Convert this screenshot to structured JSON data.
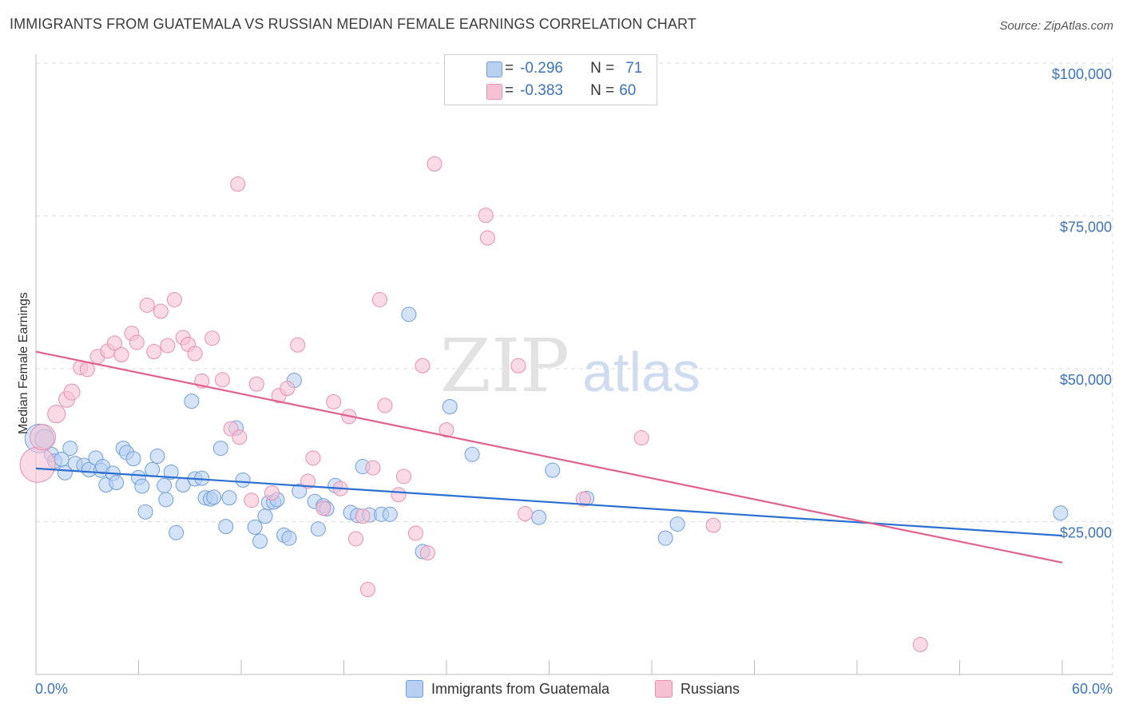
{
  "header": {
    "title": "IMMIGRANTS FROM GUATEMALA VS RUSSIAN MEDIAN FEMALE EARNINGS CORRELATION CHART",
    "source": "Source: ZipAtlas.com"
  },
  "watermark": {
    "zip": "ZIP",
    "atlas": "atlas"
  },
  "legend": {
    "rows": [
      {
        "r_label": "R =",
        "r_value": "-0.296",
        "n_label": "N =",
        "n_value": "71"
      },
      {
        "r_label": "R =",
        "r_value": "-0.383",
        "n_label": "N =",
        "n_value": "60"
      }
    ]
  },
  "bottom_legend": {
    "series1": "Immigrants from Guatemala",
    "series2": "Russians"
  },
  "colors": {
    "blue_fill": "#b7d0f2",
    "blue_stroke": "#6f9fdd",
    "blue_line": "#2a6fd1",
    "pink_fill": "#f6c2d3",
    "pink_stroke": "#e98fae",
    "pink_line": "#e0608f",
    "tick_text": "#3a73c4",
    "grid": "#dedede"
  },
  "chart_data": {
    "type": "scatter",
    "title": "IMMIGRANTS FROM GUATEMALA VS RUSSIAN MEDIAN FEMALE EARNINGS CORRELATION CHART",
    "xlabel": "",
    "ylabel": "Median Female Earnings",
    "xlim": [
      0,
      60
    ],
    "ylim": [
      0,
      104000
    ],
    "x_tick_labels": [
      "0.0%",
      "60.0%"
    ],
    "y_ticks": [
      25000,
      50000,
      75000,
      100000
    ],
    "y_tick_labels": [
      "$25,000",
      "$50,000",
      "$75,000",
      "$100,000"
    ],
    "grid": true,
    "legend_position": "top-center",
    "series": [
      {
        "name": "Immigrants from Guatemala",
        "color": "#6f9fdd",
        "trend": {
          "x": [
            0,
            60
          ],
          "y": [
            33700,
            22700
          ]
        },
        "points": [
          [
            0.2,
            38600,
            18
          ],
          [
            0.5,
            38500,
            12
          ],
          [
            0.9,
            36000,
            9
          ],
          [
            1.1,
            34900,
            9
          ],
          [
            2.0,
            37000,
            9
          ],
          [
            1.5,
            35200,
            9
          ],
          [
            1.7,
            33000,
            9
          ],
          [
            2.3,
            34500,
            9
          ],
          [
            2.8,
            34200,
            9
          ],
          [
            3.1,
            33500,
            9
          ],
          [
            3.5,
            35400,
            9
          ],
          [
            3.8,
            33400,
            9
          ],
          [
            3.9,
            34000,
            9
          ],
          [
            4.1,
            31000,
            9
          ],
          [
            4.5,
            32900,
            9
          ],
          [
            4.7,
            31400,
            9
          ],
          [
            5.1,
            37000,
            9
          ],
          [
            5.3,
            36300,
            9
          ],
          [
            5.7,
            35300,
            9
          ],
          [
            6.0,
            32200,
            9
          ],
          [
            6.2,
            30800,
            9
          ],
          [
            6.4,
            26600,
            9
          ],
          [
            6.8,
            33500,
            9
          ],
          [
            7.1,
            35700,
            9
          ],
          [
            7.5,
            30900,
            9
          ],
          [
            7.6,
            28600,
            9
          ],
          [
            7.9,
            33100,
            9
          ],
          [
            8.2,
            23200,
            9
          ],
          [
            8.6,
            31000,
            9
          ],
          [
            9.1,
            44700,
            9
          ],
          [
            9.3,
            32000,
            9
          ],
          [
            9.7,
            32100,
            9
          ],
          [
            9.9,
            28900,
            9
          ],
          [
            10.2,
            28700,
            9
          ],
          [
            10.4,
            29000,
            9
          ],
          [
            10.8,
            37000,
            9
          ],
          [
            11.1,
            24200,
            9
          ],
          [
            11.3,
            28900,
            9
          ],
          [
            11.7,
            40300,
            9
          ],
          [
            12.1,
            31800,
            9
          ],
          [
            12.8,
            24100,
            9
          ],
          [
            13.1,
            21800,
            9
          ],
          [
            13.4,
            25900,
            9
          ],
          [
            13.6,
            28100,
            9
          ],
          [
            13.9,
            28200,
            9
          ],
          [
            14.1,
            28600,
            9
          ],
          [
            14.5,
            22800,
            9
          ],
          [
            14.8,
            22300,
            9
          ],
          [
            15.1,
            48100,
            9
          ],
          [
            15.4,
            30000,
            9
          ],
          [
            16.3,
            28300,
            9
          ],
          [
            16.5,
            23800,
            9
          ],
          [
            16.8,
            27600,
            9
          ],
          [
            17.0,
            27100,
            9
          ],
          [
            17.5,
            30900,
            9
          ],
          [
            18.4,
            26500,
            9
          ],
          [
            18.8,
            26000,
            9
          ],
          [
            19.1,
            34000,
            9
          ],
          [
            19.5,
            26100,
            9
          ],
          [
            20.2,
            26200,
            9
          ],
          [
            20.7,
            26200,
            9
          ],
          [
            21.8,
            58900,
            9
          ],
          [
            22.6,
            20100,
            9
          ],
          [
            24.2,
            43800,
            9
          ],
          [
            25.5,
            36000,
            9
          ],
          [
            29.4,
            25700,
            9
          ],
          [
            30.2,
            33400,
            9
          ],
          [
            32.2,
            28800,
            9
          ],
          [
            36.8,
            22300,
            9
          ],
          [
            37.5,
            24600,
            9
          ],
          [
            59.9,
            26400,
            9
          ]
        ]
      },
      {
        "name": "Russians",
        "color": "#e98fae",
        "trend": {
          "x": [
            0,
            60
          ],
          "y": [
            52800,
            18300
          ]
        },
        "points": [
          [
            0.1,
            34300,
            22
          ],
          [
            0.4,
            38800,
            16
          ],
          [
            1.2,
            42600,
            11
          ],
          [
            1.8,
            45000,
            10
          ],
          [
            2.1,
            46200,
            10
          ],
          [
            2.6,
            50200,
            9
          ],
          [
            3.0,
            49900,
            9
          ],
          [
            3.6,
            52000,
            9
          ],
          [
            4.2,
            52900,
            9
          ],
          [
            4.6,
            54200,
            9
          ],
          [
            5.0,
            52300,
            9
          ],
          [
            5.6,
            55800,
            9
          ],
          [
            5.9,
            54300,
            9
          ],
          [
            6.5,
            60400,
            9
          ],
          [
            6.9,
            52800,
            9
          ],
          [
            7.3,
            59400,
            9
          ],
          [
            7.7,
            53800,
            9
          ],
          [
            8.1,
            61300,
            9
          ],
          [
            8.6,
            55100,
            9
          ],
          [
            8.9,
            54000,
            9
          ],
          [
            9.3,
            52500,
            9
          ],
          [
            9.7,
            48000,
            9
          ],
          [
            10.3,
            55000,
            9
          ],
          [
            10.9,
            48200,
            9
          ],
          [
            11.4,
            40200,
            9
          ],
          [
            11.9,
            38800,
            9
          ],
          [
            11.8,
            80200,
            9
          ],
          [
            12.6,
            28500,
            9
          ],
          [
            12.9,
            47500,
            9
          ],
          [
            13.8,
            29700,
            9
          ],
          [
            14.2,
            45600,
            9
          ],
          [
            14.7,
            46800,
            9
          ],
          [
            15.3,
            53900,
            9
          ],
          [
            15.9,
            31600,
            9
          ],
          [
            16.2,
            35400,
            9
          ],
          [
            16.8,
            27200,
            9
          ],
          [
            17.4,
            44600,
            9
          ],
          [
            17.8,
            30400,
            9
          ],
          [
            18.3,
            42200,
            9
          ],
          [
            18.7,
            22200,
            9
          ],
          [
            19.1,
            25900,
            9
          ],
          [
            19.4,
            13900,
            9
          ],
          [
            19.7,
            33800,
            9
          ],
          [
            20.1,
            61300,
            9
          ],
          [
            20.4,
            44000,
            9
          ],
          [
            21.2,
            29400,
            9
          ],
          [
            21.5,
            32400,
            9
          ],
          [
            22.2,
            23100,
            9
          ],
          [
            22.6,
            50500,
            9
          ],
          [
            22.9,
            19900,
            9
          ],
          [
            23.3,
            83500,
            9
          ],
          [
            24.0,
            40000,
            9
          ],
          [
            26.3,
            75100,
            9
          ],
          [
            26.4,
            71400,
            9
          ],
          [
            28.2,
            50500,
            9
          ],
          [
            28.6,
            26300,
            9
          ],
          [
            32.0,
            28700,
            9
          ],
          [
            35.4,
            38700,
            9
          ],
          [
            39.6,
            24400,
            9
          ],
          [
            51.7,
            4900,
            9
          ]
        ]
      }
    ]
  }
}
